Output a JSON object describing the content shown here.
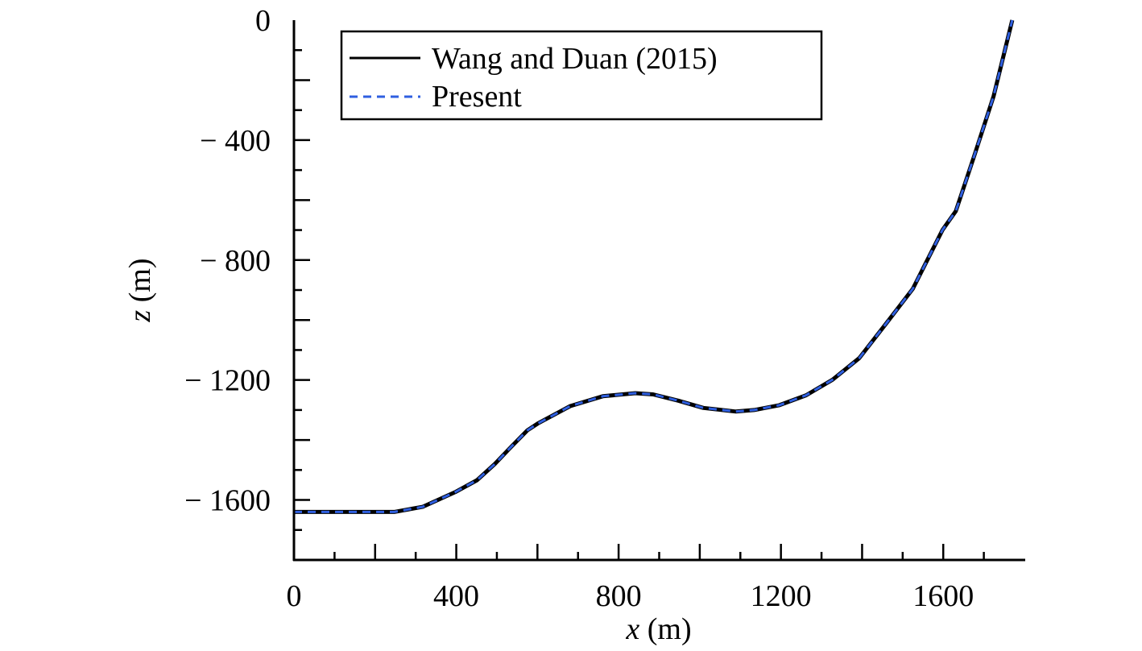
{
  "chart_data": {
    "type": "line",
    "title": "",
    "xlabel": "x (m)",
    "xlabel_var": "x",
    "xlabel_unit": " (m)",
    "ylabel": "z (m)",
    "ylabel_var": "z",
    "ylabel_unit": " (m)",
    "xlim": [
      0,
      1800
    ],
    "ylim": [
      -1800,
      0
    ],
    "xticks": [
      0,
      400,
      800,
      1200,
      1600
    ],
    "xtick_labels": [
      "0",
      "400",
      "800",
      "1200",
      "1600"
    ],
    "yticks": [
      0,
      -400,
      -800,
      -1200,
      -1600
    ],
    "ytick_labels": [
      "0",
      "− 400",
      "− 800",
      "− 1200",
      "− 1600"
    ],
    "grid": false,
    "legend_position": "top-left",
    "series": [
      {
        "name": "Wang and Duan (2015)",
        "color": "#000000",
        "style": "solid",
        "x": [
          0,
          247,
          317,
          397,
          451,
          495,
          530,
          575,
          601,
          681,
          761,
          841,
          885,
          947,
          1009,
          1089,
          1134,
          1196,
          1262,
          1327,
          1393,
          1459,
          1525,
          1598,
          1631,
          1677,
          1724,
          1770
        ],
        "z": [
          -1640,
          -1640,
          -1623,
          -1574,
          -1534,
          -1480,
          -1430,
          -1368,
          -1345,
          -1287,
          -1254,
          -1244,
          -1248,
          -1269,
          -1293,
          -1305,
          -1300,
          -1284,
          -1251,
          -1199,
          -1127,
          -1012,
          -896,
          -700,
          -637,
          -450,
          -254,
          0
        ]
      },
      {
        "name": "Present",
        "color": "#2f5fe0",
        "style": "dashed",
        "x": [
          0,
          247,
          317,
          397,
          451,
          495,
          530,
          575,
          601,
          681,
          761,
          841,
          885,
          947,
          1009,
          1089,
          1134,
          1196,
          1262,
          1327,
          1393,
          1459,
          1525,
          1598,
          1631,
          1677,
          1724,
          1770
        ],
        "z": [
          -1640,
          -1640,
          -1623,
          -1574,
          -1534,
          -1480,
          -1430,
          -1368,
          -1345,
          -1287,
          -1254,
          -1244,
          -1248,
          -1269,
          -1293,
          -1305,
          -1300,
          -1284,
          -1251,
          -1199,
          -1127,
          -1012,
          -896,
          -700,
          -637,
          -450,
          -254,
          0
        ]
      }
    ]
  }
}
